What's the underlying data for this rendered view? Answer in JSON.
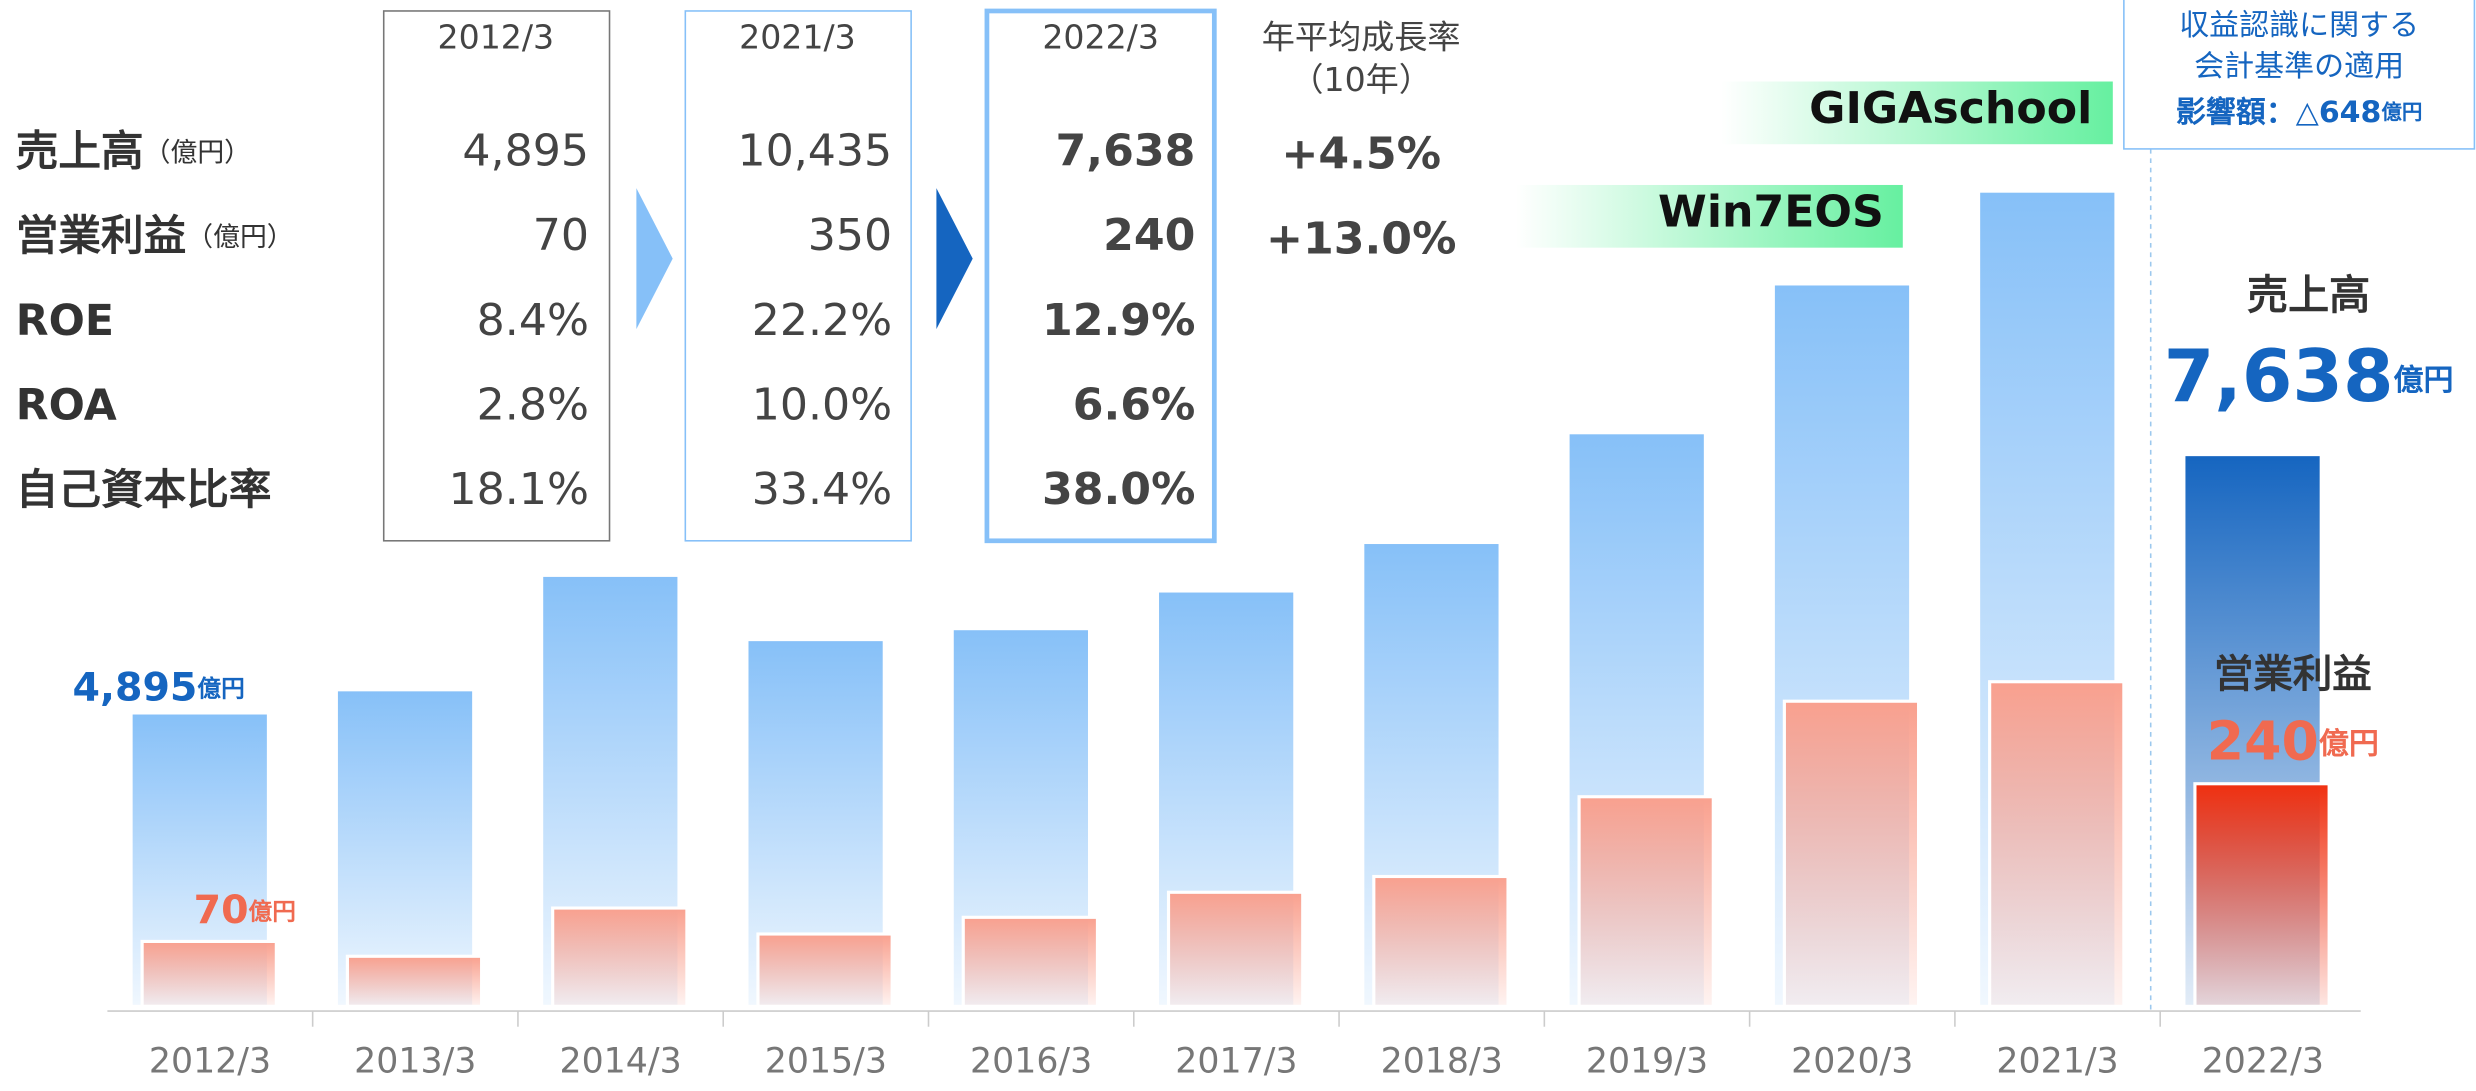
{
  "chart_data": {
    "type": "bar",
    "categories": [
      "2012/3",
      "2013/3",
      "2014/3",
      "2015/3",
      "2016/3",
      "2017/3",
      "2018/3",
      "2019/3",
      "2020/3",
      "2021/3",
      "2022/3"
    ],
    "series": [
      {
        "name": "売上高",
        "color": "#86c0f8",
        "last_color": "#1565c0",
        "values": [
          4895,
          5141,
          6356,
          5674,
          5790,
          6190,
          6705,
          7870,
          9450,
          10435,
          7638
        ]
      },
      {
        "name": "営業利益",
        "color": "#f9a08e",
        "last_color": "#f03010",
        "axis": "y2",
        "values": [
          70,
          54,
          106,
          78,
          96,
          123,
          140,
          226,
          329,
          350,
          240
        ]
      }
    ],
    "ylim": [
      1780,
      10800
    ],
    "y2lim": [
      0,
      916
    ],
    "annotations": {
      "first_sales": {
        "text": "4,895",
        "unit": "億円"
      },
      "first_profit": {
        "text": "70",
        "unit": "億円"
      },
      "last_sales": {
        "name": "売上高",
        "text": "7,638",
        "unit": "億円"
      },
      "last_profit": {
        "name": "営業利益",
        "text": "240",
        "unit": "億円"
      },
      "badges": [
        "GIGAschool",
        "Win7EOS"
      ],
      "note": [
        "収益認識に関する",
        "会計基準の適用",
        "影響額：△648",
        "億円"
      ]
    }
  },
  "table": {
    "columns": [
      "2012/3",
      "2021/3",
      "2022/3"
    ],
    "growth_header": [
      "年平均成長率",
      "（10年）"
    ],
    "rows": [
      {
        "label": "売上高",
        "unit": "（億円）",
        "values": [
          "4,895",
          "10,435",
          "7,638"
        ],
        "growth": "+4.5%"
      },
      {
        "label": "営業利益",
        "unit": "（億円）",
        "values": [
          "70",
          "350",
          "240"
        ],
        "growth": "+13.0%"
      },
      {
        "label": "ROE",
        "values": [
          "8.4%",
          "22.2%",
          "12.9%"
        ]
      },
      {
        "label": "ROA",
        "values": [
          "2.8%",
          "10.0%",
          "6.6%"
        ]
      },
      {
        "label": "自己資本比率",
        "values": [
          "18.1%",
          "33.4%",
          "38.0%"
        ]
      }
    ]
  }
}
